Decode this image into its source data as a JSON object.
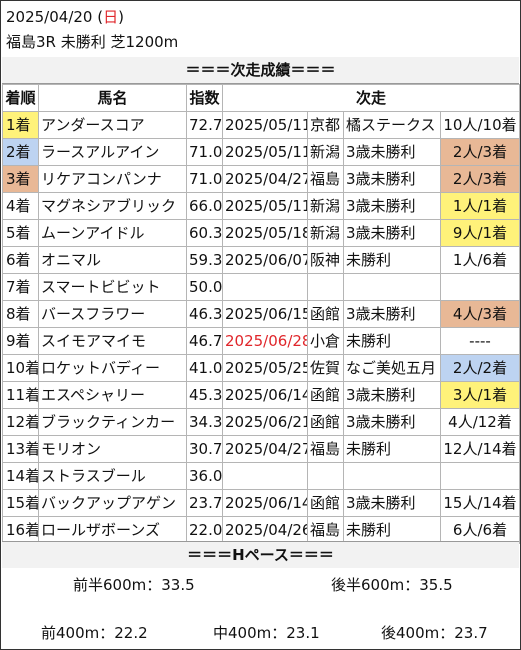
{
  "header": {
    "date": "2025/04/20",
    "weekday_open": " (",
    "weekday": "日",
    "weekday_close": ")",
    "race": "福島3R 未勝利 芝1200m"
  },
  "banner_next": "＝＝＝次走成績＝＝＝",
  "columns": {
    "pos": "着順",
    "name": "馬名",
    "index": "指数",
    "next": "次走"
  },
  "rows": [
    {
      "pos": "1着",
      "name": "アンダースコア",
      "index": "72.7",
      "date": "2025/05/11",
      "track": "京都",
      "race": "橘ステークス",
      "result": "10人/10着",
      "pos_color": "#fff27a",
      "result_color": "",
      "date_color": ""
    },
    {
      "pos": "2着",
      "name": "ラースアルアイン",
      "index": "71.0",
      "date": "2025/05/11",
      "track": "新潟",
      "race": "3歳未勝利",
      "result": "2人/3着",
      "pos_color": "#bdd3f1",
      "result_color": "#e8b896",
      "date_color": ""
    },
    {
      "pos": "3着",
      "name": "リケアコンパンナ",
      "index": "71.0",
      "date": "2025/04/27",
      "track": "福島",
      "race": "3歳未勝利",
      "result": "2人/3着",
      "pos_color": "#e8b896",
      "result_color": "#e8b896",
      "date_color": ""
    },
    {
      "pos": "4着",
      "name": "マグネシアブリック",
      "index": "66.0",
      "date": "2025/05/11",
      "track": "新潟",
      "race": "3歳未勝利",
      "result": "1人/1着",
      "pos_color": "",
      "result_color": "#fff27a",
      "date_color": ""
    },
    {
      "pos": "5着",
      "name": "ムーンアイドル",
      "index": "60.3",
      "date": "2025/05/18",
      "track": "新潟",
      "race": "3歳未勝利",
      "result": "9人/1着",
      "pos_color": "",
      "result_color": "#fff27a",
      "date_color": ""
    },
    {
      "pos": "6着",
      "name": "オニマル",
      "index": "59.3",
      "date": "2025/06/07",
      "track": "阪神",
      "race": "未勝利",
      "result": "1人/6着",
      "pos_color": "",
      "result_color": "",
      "date_color": ""
    },
    {
      "pos": "7着",
      "name": "スマートビビット",
      "index": "50.0",
      "date": "",
      "track": "",
      "race": "",
      "result": "",
      "pos_color": "",
      "result_color": "",
      "date_color": ""
    },
    {
      "pos": "8着",
      "name": "バースフラワー",
      "index": "46.3",
      "date": "2025/06/15",
      "track": "函館",
      "race": "3歳未勝利",
      "result": "4人/3着",
      "pos_color": "",
      "result_color": "#e8b896",
      "date_color": ""
    },
    {
      "pos": "9着",
      "name": "スイモアマイモ",
      "index": "46.7",
      "date": "2025/06/28",
      "track": "小倉",
      "race": "未勝利",
      "result": "----",
      "pos_color": "",
      "result_color": "",
      "date_color": "#e0262b"
    },
    {
      "pos": "10着",
      "name": "ロケットバディー",
      "index": "41.0",
      "date": "2025/05/25",
      "track": "佐賀",
      "race": "なご美処五月",
      "result": "2人/2着",
      "pos_color": "",
      "result_color": "#bdd3f1",
      "date_color": ""
    },
    {
      "pos": "11着",
      "name": "エスペシャリー",
      "index": "45.3",
      "date": "2025/06/14",
      "track": "函館",
      "race": "3歳未勝利",
      "result": "3人/1着",
      "pos_color": "",
      "result_color": "#fff27a",
      "date_color": ""
    },
    {
      "pos": "12着",
      "name": "ブラックティンカー",
      "index": "34.3",
      "date": "2025/06/21",
      "track": "函館",
      "race": "3歳未勝利",
      "result": "4人/12着",
      "pos_color": "",
      "result_color": "",
      "date_color": ""
    },
    {
      "pos": "13着",
      "name": "モリオン",
      "index": "30.7",
      "date": "2025/04/27",
      "track": "福島",
      "race": "未勝利",
      "result": "12人/14着",
      "pos_color": "",
      "result_color": "",
      "date_color": ""
    },
    {
      "pos": "14着",
      "name": "ストラスブール",
      "index": "36.0",
      "date": "",
      "track": "",
      "race": "",
      "result": "",
      "pos_color": "",
      "result_color": "",
      "date_color": ""
    },
    {
      "pos": "15着",
      "name": "バックアップアゲン",
      "index": "23.7",
      "date": "2025/06/14",
      "track": "函館",
      "race": "3歳未勝利",
      "result": "15人/14着",
      "pos_color": "",
      "result_color": "",
      "date_color": ""
    },
    {
      "pos": "16着",
      "name": "ロールザボーンズ",
      "index": "22.0",
      "date": "2025/04/26",
      "track": "福島",
      "race": "未勝利",
      "result": "6人/6着",
      "pos_color": "",
      "result_color": "",
      "date_color": ""
    }
  ],
  "banner_pace": "＝＝＝Hペース＝＝＝",
  "pace": {
    "first_half": "前半600m：33.5",
    "second_half": "後半600m：35.5",
    "first_400": "前400m：22.2",
    "middle_400": "中400m：23.1",
    "last_400": "後400m：23.7"
  }
}
